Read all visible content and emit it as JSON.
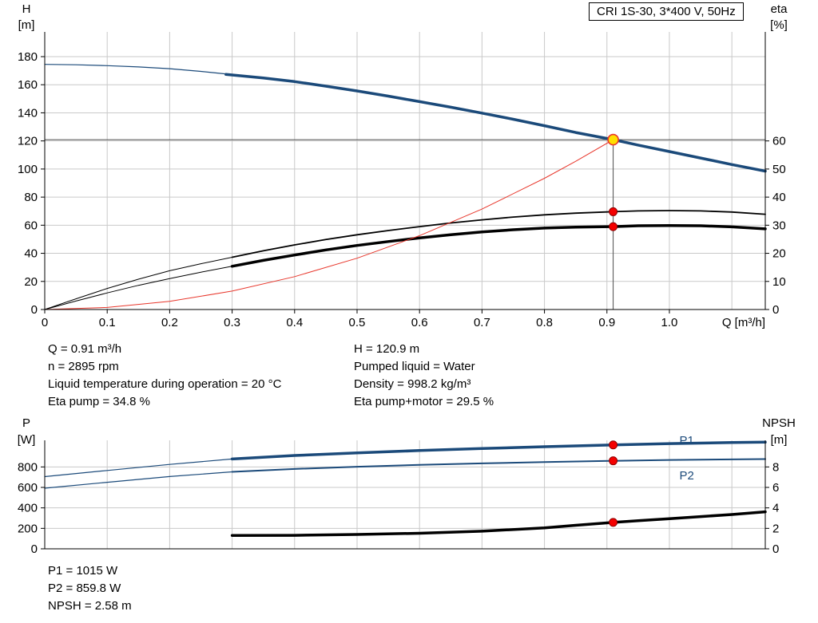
{
  "title_box": {
    "label": "CRI 1S-30, 3*400 V, 50Hz"
  },
  "colors": {
    "curve_blue": "#1b4a7a",
    "curve_black": "#000000",
    "system_red": "#e8372c",
    "grid": "#c9c9c9",
    "axis": "#000000",
    "duty_line": "#4d4d4d",
    "marker_red": "#f40000",
    "duty_yellow": "#ffdf00",
    "label_blue": "#1b4a7a"
  },
  "operating_data": {
    "left": [
      "Q = 0.91 m³/h",
      "n = 2895 rpm",
      "Liquid temperature during operation = 20 °C",
      "Eta pump = 34.8 %"
    ],
    "right": [
      "H = 120.9 m",
      "Pumped liquid = Water",
      "Density = 998.2 kg/m³",
      "Eta pump+motor = 29.5 %"
    ]
  },
  "power_data": {
    "lines": [
      "P1 = 1015 W",
      "P2 = 859.8 W",
      "NPSH = 2.58 m"
    ]
  },
  "chart_data": [
    {
      "id": "head_chart",
      "type": "line",
      "title": "CRI 1S-30, 3*400 V, 50Hz",
      "xlabel": "Q [m³/h]",
      "ylabel_left": "H [m]",
      "ylabel_right": "eta [%]",
      "xlim": [
        0,
        1.1535
      ],
      "ylim_left": [
        0,
        197.6
      ],
      "ylim_right": [
        0,
        98.8
      ],
      "x_ticks": [
        0,
        0.1,
        0.2,
        0.3,
        0.4,
        0.5,
        0.6,
        0.7,
        0.8,
        0.9,
        1.0
      ],
      "x_tick_labels": [
        "0",
        "0.1",
        "0.2",
        "0.3",
        "0.4",
        "0.5",
        "0.6",
        "0.7",
        "0.8",
        "0.9",
        "1.0"
      ],
      "x_grid": [
        0.1,
        0.2,
        0.3,
        0.4,
        0.5,
        0.6,
        0.7,
        0.8,
        0.9,
        1.0,
        1.1
      ],
      "y_ticks_left": [
        0,
        20,
        40,
        60,
        80,
        100,
        120,
        140,
        160,
        180
      ],
      "y_ticks_right": [
        0,
        10,
        20,
        30,
        40,
        50,
        60
      ],
      "grid": true,
      "duty_point": {
        "q": 0.91,
        "h": 120.9
      },
      "series": [
        {
          "name": "pump-curve-low-flow",
          "axis": "left",
          "color": "#1b4a7a",
          "width": 1.2,
          "points": [
            [
              0,
              174.5
            ],
            [
              0.05,
              174.2
            ],
            [
              0.1,
              173.6
            ],
            [
              0.15,
              172.7
            ],
            [
              0.2,
              171.4
            ],
            [
              0.25,
              169.5
            ],
            [
              0.3,
              167.2
            ]
          ]
        },
        {
          "name": "pump-curve",
          "axis": "left",
          "color": "#1b4a7a",
          "width": 3.5,
          "points": [
            [
              0.29,
              167.4
            ],
            [
              0.35,
              164.8
            ],
            [
              0.4,
              162.2
            ],
            [
              0.45,
              159.0
            ],
            [
              0.5,
              155.6
            ],
            [
              0.55,
              151.9
            ],
            [
              0.6,
              148.0
            ],
            [
              0.65,
              144.0
            ],
            [
              0.7,
              139.8
            ],
            [
              0.75,
              135.4
            ],
            [
              0.8,
              130.8
            ],
            [
              0.85,
              126.0
            ],
            [
              0.91,
              120.9
            ],
            [
              0.95,
              117.0
            ],
            [
              1.0,
              112.4
            ],
            [
              1.05,
              107.8
            ],
            [
              1.1,
              103.2
            ],
            [
              1.1535,
              98.5
            ]
          ]
        },
        {
          "name": "eta-pump-curve-low-flow",
          "axis": "right",
          "color": "#000000",
          "width": 1,
          "points": [
            [
              0,
              0
            ],
            [
              0.05,
              3.8
            ],
            [
              0.1,
              7.5
            ],
            [
              0.15,
              10.8
            ],
            [
              0.2,
              13.8
            ],
            [
              0.25,
              16.3
            ],
            [
              0.3,
              18.6
            ]
          ]
        },
        {
          "name": "eta-pump-curve",
          "axis": "right",
          "color": "#000000",
          "width": 1.8,
          "points": [
            [
              0.3,
              18.6
            ],
            [
              0.35,
              20.9
            ],
            [
              0.4,
              23.0
            ],
            [
              0.45,
              24.9
            ],
            [
              0.5,
              26.6
            ],
            [
              0.55,
              28.1
            ],
            [
              0.6,
              29.5
            ],
            [
              0.65,
              30.8
            ],
            [
              0.7,
              31.9
            ],
            [
              0.75,
              32.9
            ],
            [
              0.8,
              33.7
            ],
            [
              0.85,
              34.3
            ],
            [
              0.91,
              34.8
            ],
            [
              0.95,
              35.1
            ],
            [
              1.0,
              35.2
            ],
            [
              1.05,
              35.1
            ],
            [
              1.1,
              34.7
            ],
            [
              1.1535,
              33.9
            ]
          ]
        },
        {
          "name": "eta-pump-motor-curve-low-flow",
          "axis": "right",
          "color": "#000000",
          "width": 1,
          "points": [
            [
              0,
              0
            ],
            [
              0.05,
              3.0
            ],
            [
              0.1,
              5.9
            ],
            [
              0.15,
              8.6
            ],
            [
              0.2,
              11.0
            ],
            [
              0.25,
              13.3
            ],
            [
              0.3,
              15.4
            ]
          ]
        },
        {
          "name": "eta-pump-motor-curve",
          "axis": "right",
          "color": "#000000",
          "width": 3.5,
          "points": [
            [
              0.3,
              15.4
            ],
            [
              0.35,
              17.5
            ],
            [
              0.4,
              19.4
            ],
            [
              0.45,
              21.2
            ],
            [
              0.5,
              22.8
            ],
            [
              0.55,
              24.2
            ],
            [
              0.6,
              25.5
            ],
            [
              0.65,
              26.6
            ],
            [
              0.7,
              27.6
            ],
            [
              0.75,
              28.4
            ],
            [
              0.8,
              29.0
            ],
            [
              0.85,
              29.3
            ],
            [
              0.91,
              29.5
            ],
            [
              0.95,
              29.8
            ],
            [
              1.0,
              29.9
            ],
            [
              1.05,
              29.8
            ],
            [
              1.1,
              29.4
            ],
            [
              1.1535,
              28.7
            ]
          ]
        },
        {
          "name": "system-curve",
          "axis": "left",
          "color": "#e8372c",
          "width": 1,
          "points": [
            [
              0,
              0
            ],
            [
              0.1,
              1.5
            ],
            [
              0.2,
              5.8
            ],
            [
              0.3,
              13.1
            ],
            [
              0.4,
              23.4
            ],
            [
              0.5,
              36.5
            ],
            [
              0.6,
              52.6
            ],
            [
              0.7,
              71.5
            ],
            [
              0.8,
              93.4
            ],
            [
              0.85,
              105.5
            ],
            [
              0.91,
              120.9
            ]
          ]
        }
      ],
      "markers": [
        {
          "name": "duty-point",
          "axis": "left",
          "q": 0.91,
          "v": 120.9,
          "r": 6.5,
          "fill": "#ffdf00",
          "stroke": "#e8372c",
          "stroke_width": 1.6,
          "interactable": true
        },
        {
          "name": "eta-pump-duty-marker",
          "axis": "right",
          "q": 0.91,
          "v": 34.8,
          "r": 5,
          "fill": "#f40000",
          "stroke": "#8e0000",
          "stroke_width": 1,
          "interactable": false
        },
        {
          "name": "eta-pump-motor-duty-marker",
          "axis": "right",
          "q": 0.91,
          "v": 29.5,
          "r": 5,
          "fill": "#f40000",
          "stroke": "#8e0000",
          "stroke_width": 1,
          "interactable": false
        }
      ]
    },
    {
      "id": "power_chart",
      "type": "line",
      "xlabel": "",
      "ylabel_left": "P [W]",
      "ylabel_right": "NPSH [m]",
      "xlim": [
        0,
        1.1535
      ],
      "ylim_left": [
        0,
        1060
      ],
      "ylim_right": [
        0,
        10.6
      ],
      "x_ticks": [],
      "x_tick_labels": [],
      "x_grid": [
        0.1,
        0.2,
        0.3,
        0.4,
        0.5,
        0.6,
        0.7,
        0.8,
        0.9,
        1.0,
        1.1
      ],
      "y_ticks_left": [
        0,
        200,
        400,
        600,
        800
      ],
      "y_ticks_right": [
        0,
        2,
        4,
        6,
        8
      ],
      "grid": true,
      "series": [
        {
          "name": "p1-curve-low-flow",
          "axis": "left",
          "color": "#1b4a7a",
          "width": 1.2,
          "points": [
            [
              0,
              705
            ],
            [
              0.1,
              765
            ],
            [
              0.2,
              825
            ],
            [
              0.3,
              878
            ]
          ]
        },
        {
          "name": "p1-curve",
          "axis": "left",
          "color": "#1b4a7a",
          "width": 3.5,
          "points": [
            [
              0.3,
              878
            ],
            [
              0.4,
              912
            ],
            [
              0.5,
              938
            ],
            [
              0.6,
              960
            ],
            [
              0.7,
              980
            ],
            [
              0.8,
              998
            ],
            [
              0.91,
              1015
            ],
            [
              1.0,
              1028
            ],
            [
              1.1,
              1038
            ],
            [
              1.1535,
              1042
            ]
          ]
        },
        {
          "name": "p2-curve-low-flow",
          "axis": "left",
          "color": "#1b4a7a",
          "width": 1.2,
          "points": [
            [
              0,
              592
            ],
            [
              0.1,
              650
            ],
            [
              0.2,
              706
            ],
            [
              0.3,
              752
            ]
          ]
        },
        {
          "name": "p2-curve",
          "axis": "left",
          "color": "#1b4a7a",
          "width": 2,
          "points": [
            [
              0.3,
              752
            ],
            [
              0.4,
              780
            ],
            [
              0.5,
              802
            ],
            [
              0.6,
              820
            ],
            [
              0.7,
              835
            ],
            [
              0.8,
              848
            ],
            [
              0.91,
              859.8
            ],
            [
              1.0,
              868
            ],
            [
              1.1,
              874
            ],
            [
              1.1535,
              877
            ]
          ]
        },
        {
          "name": "npsh-curve",
          "axis": "right",
          "color": "#000000",
          "width": 3.5,
          "points": [
            [
              0.3,
              1.3
            ],
            [
              0.4,
              1.32
            ],
            [
              0.5,
              1.4
            ],
            [
              0.6,
              1.52
            ],
            [
              0.7,
              1.72
            ],
            [
              0.8,
              2.05
            ],
            [
              0.85,
              2.3
            ],
            [
              0.91,
              2.58
            ],
            [
              0.95,
              2.75
            ],
            [
              1.0,
              2.95
            ],
            [
              1.05,
              3.15
            ],
            [
              1.1,
              3.35
            ],
            [
              1.1535,
              3.62
            ]
          ]
        }
      ],
      "markers": [
        {
          "name": "p1-duty-marker",
          "axis": "left",
          "q": 0.91,
          "v": 1015,
          "r": 5,
          "fill": "#f40000",
          "stroke": "#8e0000",
          "stroke_width": 1,
          "interactable": false
        },
        {
          "name": "p2-duty-marker",
          "axis": "left",
          "q": 0.91,
          "v": 859.8,
          "r": 5,
          "fill": "#f40000",
          "stroke": "#8e0000",
          "stroke_width": 1,
          "interactable": false
        },
        {
          "name": "npsh-duty-marker",
          "axis": "right",
          "q": 0.91,
          "v": 2.58,
          "r": 5,
          "fill": "#f40000",
          "stroke": "#8e0000",
          "stroke_width": 1,
          "interactable": false
        }
      ],
      "series_labels": [
        {
          "text": "P1",
          "q": 1.016,
          "v": 1022,
          "axis": "left",
          "color": "#1b4a7a",
          "name": "p1-curve-label"
        },
        {
          "text": "P2",
          "q": 1.016,
          "v": 680,
          "axis": "left",
          "color": "#1b4a7a",
          "name": "p2-curve-label"
        }
      ]
    }
  ]
}
